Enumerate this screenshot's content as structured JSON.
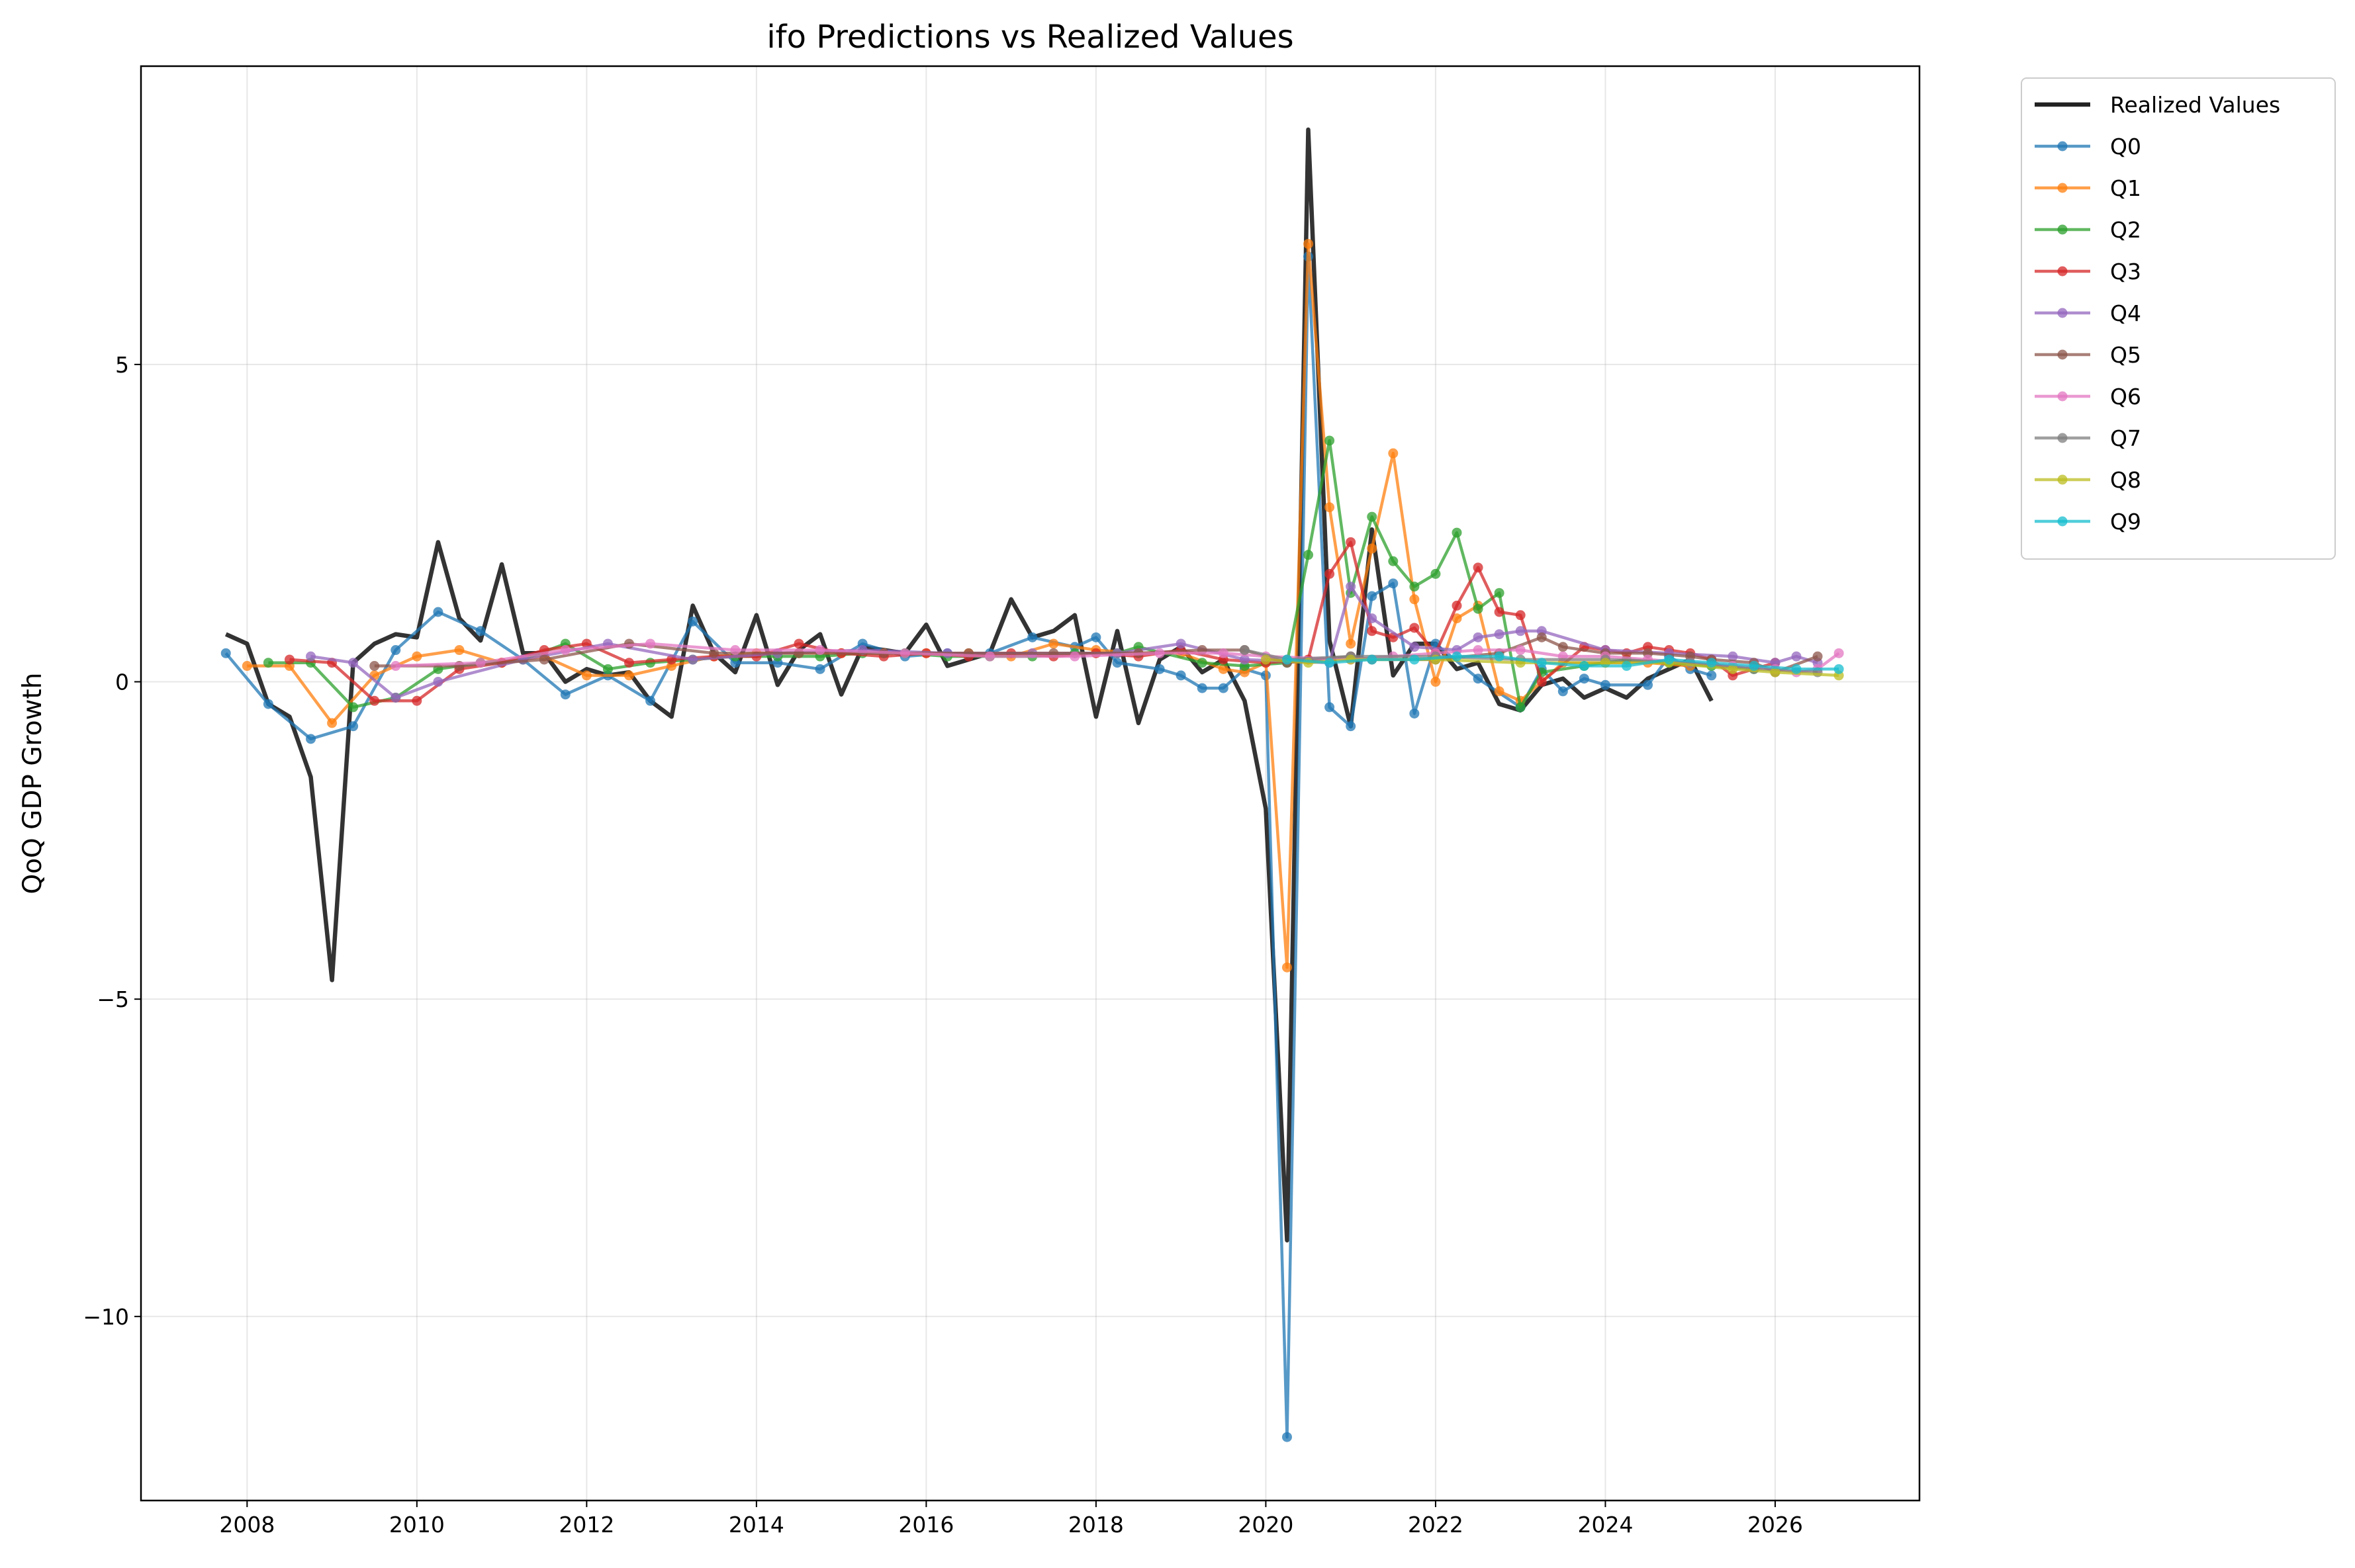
{
  "chart_data": {
    "type": "line",
    "title": "ifo Predictions vs Realized Values",
    "xlabel": "",
    "ylabel": "QoQ GDP Growth",
    "xlim": [
      2006.75,
      2027.7
    ],
    "ylim": [
      -12.9,
      9.7
    ],
    "x_ticks": [
      2008,
      2010,
      2012,
      2014,
      2016,
      2018,
      2020,
      2022,
      2024,
      2026
    ],
    "y_ticks": [
      -10,
      -5,
      0,
      5
    ],
    "y_tick_labels": [
      "−10",
      "−5",
      "0",
      "5"
    ],
    "grid": true,
    "legend_position": "outside top-right",
    "series": [
      {
        "name": "Realized Values",
        "color": "#222222",
        "markers": false,
        "x": [
          2007.75,
          2008.0,
          2008.25,
          2008.5,
          2008.75,
          2009.0,
          2009.25,
          2009.5,
          2009.75,
          2010.0,
          2010.25,
          2010.5,
          2010.75,
          2011.0,
          2011.25,
          2011.5,
          2011.75,
          2012.0,
          2012.25,
          2012.5,
          2012.75,
          2013.0,
          2013.25,
          2013.5,
          2013.75,
          2014.0,
          2014.25,
          2014.5,
          2014.75,
          2015.0,
          2015.25,
          2015.5,
          2015.75,
          2016.0,
          2016.25,
          2016.5,
          2016.75,
          2017.0,
          2017.25,
          2017.5,
          2017.75,
          2018.0,
          2018.25,
          2018.5,
          2018.75,
          2019.0,
          2019.25,
          2019.5,
          2019.75,
          2020.0,
          2020.25,
          2020.5,
          2020.75,
          2021.0,
          2021.25,
          2021.5,
          2021.75,
          2022.0,
          2022.25,
          2022.5,
          2022.75,
          2023.0,
          2023.25,
          2023.5,
          2023.75,
          2024.0,
          2024.25,
          2024.5,
          2024.75,
          2025.0,
          2025.25
        ],
        "y": [
          0.75,
          0.6,
          -0.35,
          -0.55,
          -1.5,
          -4.7,
          0.3,
          0.6,
          0.75,
          0.7,
          2.2,
          1.0,
          0.65,
          1.85,
          0.45,
          0.45,
          0.0,
          0.2,
          0.1,
          0.15,
          -0.3,
          -0.55,
          1.2,
          0.45,
          0.15,
          1.05,
          -0.05,
          0.5,
          0.75,
          -0.2,
          0.55,
          0.5,
          0.45,
          0.9,
          0.25,
          0.35,
          0.45,
          1.3,
          0.7,
          0.8,
          1.05,
          -0.55,
          0.8,
          -0.65,
          0.35,
          0.55,
          0.15,
          0.35,
          -0.3,
          -2.0,
          -8.8,
          8.7,
          0.65,
          -0.7,
          2.4,
          0.1,
          0.6,
          0.6,
          0.2,
          0.3,
          -0.35,
          -0.45,
          -0.05,
          0.05,
          -0.25,
          -0.1,
          -0.25,
          0.05,
          0.2,
          0.35,
          -0.3
        ]
      },
      {
        "name": "Q0",
        "color": "#1f77b4",
        "markers": true,
        "x": [
          2007.75,
          2008.25,
          2008.75,
          2009.25,
          2009.75,
          2010.25,
          2010.75,
          2011.25,
          2011.75,
          2012.25,
          2012.75,
          2013.25,
          2013.75,
          2014.25,
          2014.75,
          2015.25,
          2015.75,
          2016.25,
          2016.75,
          2017.25,
          2017.75,
          2018.0,
          2018.25,
          2018.75,
          2019.0,
          2019.25,
          2019.5,
          2019.75,
          2020.0,
          2020.25,
          2020.5,
          2020.75,
          2021.0,
          2021.25,
          2021.5,
          2021.75,
          2022.0,
          2022.5,
          2023.0,
          2023.25,
          2023.5,
          2023.75,
          2024.0,
          2024.5,
          2024.75,
          2025.0,
          2025.25
        ],
        "y": [
          0.45,
          -0.35,
          -0.9,
          -0.7,
          0.5,
          1.1,
          0.8,
          0.35,
          -0.2,
          0.1,
          -0.3,
          0.95,
          0.3,
          0.3,
          0.2,
          0.6,
          0.4,
          0.45,
          0.45,
          0.7,
          0.55,
          0.7,
          0.3,
          0.2,
          0.1,
          -0.1,
          -0.1,
          0.2,
          0.1,
          -11.9,
          6.7,
          -0.4,
          -0.7,
          1.35,
          1.55,
          -0.5,
          0.6,
          0.05,
          -0.4,
          0.2,
          -0.15,
          0.05,
          -0.05,
          -0.05,
          0.4,
          0.2,
          0.1
        ]
      },
      {
        "name": "Q1",
        "color": "#ff7f0e",
        "markers": true,
        "x": [
          2008.0,
          2008.5,
          2009.0,
          2009.5,
          2010.0,
          2010.5,
          2011.0,
          2011.5,
          2012.0,
          2012.5,
          2013.0,
          2013.5,
          2014.0,
          2014.5,
          2015.0,
          2015.5,
          2016.0,
          2016.5,
          2017.0,
          2017.5,
          2018.0,
          2018.5,
          2019.0,
          2019.5,
          2019.75,
          2020.0,
          2020.25,
          2020.5,
          2020.75,
          2021.0,
          2021.25,
          2021.5,
          2021.75,
          2022.0,
          2022.25,
          2022.5,
          2022.75,
          2023.0,
          2023.5,
          2024.0,
          2024.5,
          2025.0
        ],
        "y": [
          0.25,
          0.25,
          -0.65,
          0.1,
          0.4,
          0.5,
          0.3,
          0.4,
          0.1,
          0.1,
          0.25,
          0.4,
          0.45,
          0.45,
          0.45,
          0.45,
          0.45,
          0.45,
          0.4,
          0.6,
          0.5,
          0.45,
          0.45,
          0.2,
          0.15,
          0.3,
          -4.5,
          6.9,
          2.75,
          0.6,
          2.1,
          3.6,
          1.3,
          0.0,
          1.0,
          1.2,
          -0.15,
          -0.3,
          0.3,
          0.3,
          0.3,
          0.25
        ]
      },
      {
        "name": "Q2",
        "color": "#2ca02c",
        "markers": true,
        "x": [
          2008.25,
          2008.75,
          2009.25,
          2009.75,
          2010.25,
          2010.75,
          2011.25,
          2011.75,
          2012.25,
          2012.75,
          2013.25,
          2013.75,
          2014.25,
          2014.75,
          2015.25,
          2015.75,
          2016.25,
          2016.75,
          2017.25,
          2017.75,
          2018.25,
          2018.5,
          2019.25,
          2019.75,
          2020.25,
          2020.5,
          2020.75,
          2021.0,
          2021.25,
          2021.5,
          2021.75,
          2022.0,
          2022.25,
          2022.5,
          2022.75,
          2023.0,
          2023.25,
          2023.75,
          2024.25,
          2024.75,
          2025.25,
          2025.75
        ],
        "y": [
          0.3,
          0.3,
          -0.4,
          -0.25,
          0.2,
          0.3,
          0.35,
          0.6,
          0.2,
          0.3,
          0.35,
          0.4,
          0.4,
          0.4,
          0.45,
          0.45,
          0.4,
          0.4,
          0.4,
          0.45,
          0.45,
          0.55,
          0.3,
          0.25,
          0.3,
          2.0,
          3.8,
          1.4,
          2.6,
          1.9,
          1.5,
          1.7,
          2.35,
          1.15,
          1.4,
          -0.4,
          0.15,
          0.25,
          0.35,
          0.3,
          0.25,
          0.2
        ]
      },
      {
        "name": "Q3",
        "color": "#d62728",
        "markers": true,
        "x": [
          2008.5,
          2009.0,
          2009.5,
          2010.0,
          2010.5,
          2011.0,
          2011.5,
          2012.0,
          2012.5,
          2013.0,
          2013.5,
          2014.0,
          2014.5,
          2015.0,
          2015.5,
          2016.0,
          2016.5,
          2017.0,
          2017.5,
          2018.0,
          2018.5,
          2019.0,
          2019.5,
          2020.0,
          2020.5,
          2020.75,
          2021.0,
          2021.25,
          2021.5,
          2021.75,
          2022.0,
          2022.25,
          2022.5,
          2022.75,
          2023.0,
          2023.25,
          2023.75,
          2024.0,
          2024.25,
          2024.5,
          2024.75,
          2025.0,
          2025.25,
          2025.5,
          2026.0
        ],
        "y": [
          0.35,
          0.3,
          -0.3,
          -0.3,
          0.2,
          0.3,
          0.5,
          0.6,
          0.3,
          0.35,
          0.4,
          0.4,
          0.6,
          0.45,
          0.4,
          0.45,
          0.4,
          0.45,
          0.4,
          0.45,
          0.4,
          0.5,
          0.35,
          0.3,
          0.35,
          1.7,
          2.2,
          0.8,
          0.7,
          0.85,
          0.45,
          1.2,
          1.8,
          1.1,
          1.05,
          0.0,
          0.55,
          0.5,
          0.45,
          0.55,
          0.5,
          0.45,
          0.35,
          0.1,
          0.3
        ]
      },
      {
        "name": "Q4",
        "color": "#9467bd",
        "markers": true,
        "x": [
          2008.75,
          2009.25,
          2009.75,
          2010.25,
          2011.25,
          2012.25,
          2013.25,
          2014.25,
          2015.25,
          2016.25,
          2017.25,
          2018.25,
          2019.0,
          2019.75,
          2020.75,
          2021.0,
          2021.25,
          2021.75,
          2022.25,
          2022.5,
          2022.75,
          2023.0,
          2023.25,
          2024.0,
          2024.75,
          2025.5,
          2026.0,
          2026.25,
          2026.5
        ],
        "y": [
          0.4,
          0.3,
          -0.25,
          0.0,
          0.35,
          0.6,
          0.35,
          0.45,
          0.5,
          0.45,
          0.45,
          0.45,
          0.6,
          0.35,
          0.3,
          1.5,
          1.0,
          0.55,
          0.5,
          0.7,
          0.75,
          0.8,
          0.8,
          0.5,
          0.45,
          0.4,
          0.3,
          0.4,
          0.3
        ]
      },
      {
        "name": "Q5",
        "color": "#8c564b",
        "markers": true,
        "x": [
          2009.5,
          2010.5,
          2011.5,
          2012.5,
          2013.5,
          2014.5,
          2015.5,
          2016.5,
          2017.5,
          2018.5,
          2019.25,
          2019.75,
          2020.25,
          2021.0,
          2021.25,
          2022.0,
          2022.75,
          2023.25,
          2023.5,
          2024.0,
          2024.5,
          2025.0,
          2025.25,
          2025.75,
          2026.0,
          2026.5
        ],
        "y": [
          0.25,
          0.25,
          0.35,
          0.6,
          0.45,
          0.45,
          0.45,
          0.45,
          0.45,
          0.45,
          0.5,
          0.5,
          0.3,
          0.4,
          0.35,
          0.35,
          0.45,
          0.7,
          0.55,
          0.45,
          0.45,
          0.4,
          0.35,
          0.3,
          0.15,
          0.4
        ]
      },
      {
        "name": "Q6",
        "color": "#e377c2",
        "markers": true,
        "x": [
          2009.75,
          2010.75,
          2011.75,
          2012.75,
          2013.75,
          2014.75,
          2015.75,
          2016.75,
          2017.75,
          2018.75,
          2019.5,
          2020.0,
          2021.0,
          2021.5,
          2022.0,
          2022.5,
          2023.0,
          2023.5,
          2024.0,
          2024.5,
          2025.0,
          2025.5,
          2026.0,
          2026.25,
          2026.5,
          2026.75
        ],
        "y": [
          0.25,
          0.3,
          0.5,
          0.6,
          0.5,
          0.5,
          0.45,
          0.4,
          0.4,
          0.45,
          0.45,
          0.4,
          0.35,
          0.4,
          0.45,
          0.5,
          0.5,
          0.4,
          0.4,
          0.35,
          0.3,
          0.25,
          0.2,
          0.15,
          0.2,
          0.45
        ]
      },
      {
        "name": "Q7",
        "color": "#7f7f7f",
        "markers": true,
        "x": [
          2019.75,
          2020.25,
          2021.0,
          2022.0,
          2023.0,
          2024.0,
          2025.0,
          2025.75,
          2026.5
        ],
        "y": [
          0.5,
          0.35,
          0.4,
          0.4,
          0.35,
          0.35,
          0.3,
          0.2,
          0.15
        ]
      },
      {
        "name": "Q8",
        "color": "#bcbd22",
        "markers": true,
        "x": [
          2020.0,
          2020.5,
          2021.0,
          2022.0,
          2023.0,
          2024.0,
          2024.75,
          2025.5,
          2026.0,
          2026.75
        ],
        "y": [
          0.35,
          0.3,
          0.35,
          0.35,
          0.3,
          0.3,
          0.3,
          0.2,
          0.15,
          0.1
        ]
      },
      {
        "name": "Q9",
        "color": "#17becf",
        "markers": true,
        "x": [
          2020.25,
          2020.75,
          2021.25,
          2021.75,
          2022.25,
          2022.75,
          2023.25,
          2023.75,
          2024.25,
          2024.75,
          2025.25,
          2025.75,
          2026.25,
          2026.75
        ],
        "y": [
          0.35,
          0.3,
          0.35,
          0.35,
          0.4,
          0.4,
          0.3,
          0.25,
          0.25,
          0.35,
          0.3,
          0.25,
          0.2,
          0.2
        ]
      }
    ]
  }
}
